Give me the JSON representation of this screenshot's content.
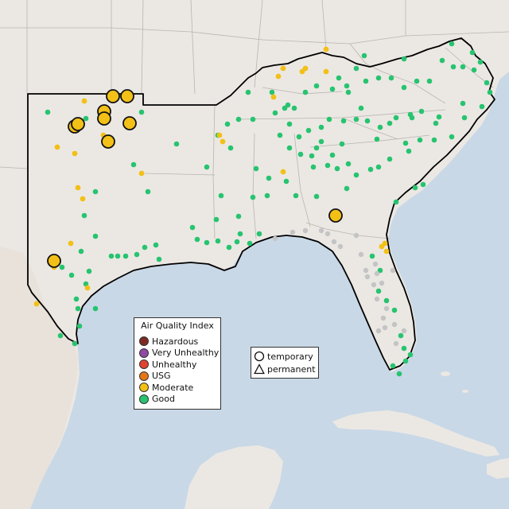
{
  "map": {
    "colors": {
      "water": "#c9d8e6",
      "land": "#ebe8e4",
      "mexico_land": "#e8e2da",
      "terrain_shadow": "#dcd3c8",
      "state_border": "#b8b4b0",
      "region_outline": "#000000"
    },
    "aqi_legend": {
      "title": "Air Quality Index",
      "items": [
        {
          "label": "Hazardous",
          "color": "#7e2a22"
        },
        {
          "label": "Very Unhealthy",
          "color": "#8e4ba3"
        },
        {
          "label": "Unhealthy",
          "color": "#e1432f"
        },
        {
          "label": "USG",
          "color": "#e57618"
        },
        {
          "label": "Moderate",
          "color": "#f2c017"
        },
        {
          "label": "Good",
          "color": "#27c46f"
        }
      ]
    },
    "shape_legend": {
      "items": [
        {
          "label": "temporary",
          "shape": "circle"
        },
        {
          "label": "permanent",
          "shape": "triangle"
        }
      ]
    },
    "no_data_color": "#c4c4c4"
  }
}
